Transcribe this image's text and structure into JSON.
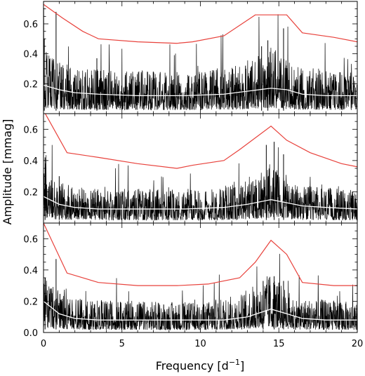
{
  "figure": {
    "ylabel": "Amplitude [mmag]",
    "xlabel_main": "Frequency [d",
    "xlabel_sup": "−1",
    "xlabel_close": "]",
    "colors": {
      "threshold": "#e8413b",
      "noise": "#ffffff",
      "spectrum": "#000000"
    }
  },
  "chart_data": [
    {
      "type": "line",
      "panel": "top",
      "xlim": [
        0,
        20
      ],
      "ylim": [
        0,
        0.75
      ],
      "xticks": [
        "0",
        "5",
        "10",
        "15",
        "20"
      ],
      "yticks": [
        "0.2",
        "0.4",
        "0.6"
      ],
      "series": [
        {
          "role": "threshold",
          "x": [
            0,
            1.2,
            2.5,
            3.5,
            6.0,
            8.5,
            9.5,
            11.5,
            13.5,
            15.5,
            16.5,
            18.5,
            20.0
          ],
          "values": [
            0.73,
            0.64,
            0.55,
            0.5,
            0.48,
            0.47,
            0.48,
            0.52,
            0.66,
            0.66,
            0.54,
            0.51,
            0.48
          ]
        },
        {
          "role": "noise",
          "x": [
            0,
            1.0,
            2.0,
            3.5,
            6.0,
            9.0,
            11.5,
            13.0,
            14.5,
            15.5,
            16.5,
            18.0,
            20.0
          ],
          "values": [
            0.19,
            0.16,
            0.14,
            0.13,
            0.12,
            0.12,
            0.13,
            0.15,
            0.17,
            0.16,
            0.13,
            0.12,
            0.12
          ]
        },
        {
          "role": "spectrum",
          "base": [
            0,
            1.0,
            2.5,
            10.0,
            12.5,
            14.5,
            16.0,
            20.0
          ],
          "base_values": [
            0.24,
            0.2,
            0.17,
            0.16,
            0.19,
            0.26,
            0.18,
            0.16
          ],
          "peaks_x": [
            0.05,
            0.8,
            3.4,
            13.9,
            14.3,
            15.3
          ],
          "peaks_y": [
            0.5,
            0.68,
            0.37,
            0.45,
            0.49,
            0.57
          ]
        }
      ]
    },
    {
      "type": "line",
      "panel": "middle",
      "xlim": [
        0,
        20
      ],
      "ylim": [
        0,
        0.7
      ],
      "xticks": [
        "0",
        "5",
        "10",
        "15",
        "20"
      ],
      "yticks": [
        "0.2",
        "0.4",
        "0.6"
      ],
      "series": [
        {
          "role": "threshold",
          "x": [
            0,
            1.5,
            3.5,
            6.0,
            8.5,
            9.5,
            11.5,
            12.5,
            14.5,
            15.5,
            17.0,
            19.0,
            20.0
          ],
          "values": [
            0.72,
            0.45,
            0.42,
            0.38,
            0.35,
            0.37,
            0.4,
            0.47,
            0.62,
            0.53,
            0.45,
            0.38,
            0.36
          ]
        },
        {
          "role": "noise",
          "x": [
            0,
            1.0,
            2.0,
            3.5,
            6.0,
            9.0,
            11.5,
            13.0,
            14.5,
            15.5,
            16.5,
            18.0,
            20.0
          ],
          "values": [
            0.17,
            0.12,
            0.1,
            0.09,
            0.09,
            0.09,
            0.1,
            0.12,
            0.15,
            0.13,
            0.11,
            0.1,
            0.09
          ]
        },
        {
          "role": "spectrum",
          "base": [
            0,
            1.0,
            2.5,
            10.0,
            12.5,
            14.5,
            16.0,
            20.0
          ],
          "base_values": [
            0.2,
            0.15,
            0.13,
            0.12,
            0.15,
            0.22,
            0.14,
            0.12
          ],
          "peaks_x": [
            0.1,
            1.0,
            14.2,
            14.7,
            15.3
          ],
          "peaks_y": [
            0.42,
            0.3,
            0.5,
            0.52,
            0.44
          ]
        }
      ]
    },
    {
      "type": "line",
      "panel": "bottom",
      "xlim": [
        0,
        20
      ],
      "ylim": [
        0,
        0.7
      ],
      "xticks": [
        "0",
        "5",
        "10",
        "15",
        "20"
      ],
      "yticks": [
        "0.0",
        "0.2",
        "0.4",
        "0.6"
      ],
      "series": [
        {
          "role": "threshold",
          "x": [
            0,
            1.5,
            3.5,
            6.0,
            8.5,
            10.5,
            12.5,
            13.5,
            14.5,
            15.5,
            16.5,
            18.5,
            20.0
          ],
          "values": [
            0.7,
            0.38,
            0.32,
            0.3,
            0.3,
            0.31,
            0.35,
            0.45,
            0.59,
            0.5,
            0.32,
            0.3,
            0.3
          ]
        },
        {
          "role": "noise",
          "x": [
            0,
            1.0,
            2.0,
            3.5,
            6.0,
            9.0,
            11.5,
            13.0,
            14.5,
            15.5,
            16.5,
            18.0,
            20.0
          ],
          "values": [
            0.2,
            0.12,
            0.09,
            0.08,
            0.08,
            0.08,
            0.08,
            0.1,
            0.15,
            0.12,
            0.09,
            0.08,
            0.08
          ]
        },
        {
          "role": "spectrum",
          "base": [
            0,
            1.0,
            2.5,
            10.0,
            12.5,
            14.5,
            16.0,
            20.0
          ],
          "base_values": [
            0.21,
            0.15,
            0.12,
            0.11,
            0.14,
            0.22,
            0.13,
            0.11
          ],
          "peaks_x": [
            0.1,
            0.8,
            14.0,
            14.7,
            15.3
          ],
          "peaks_y": [
            0.3,
            0.47,
            0.33,
            0.36,
            0.33
          ]
        }
      ]
    }
  ]
}
